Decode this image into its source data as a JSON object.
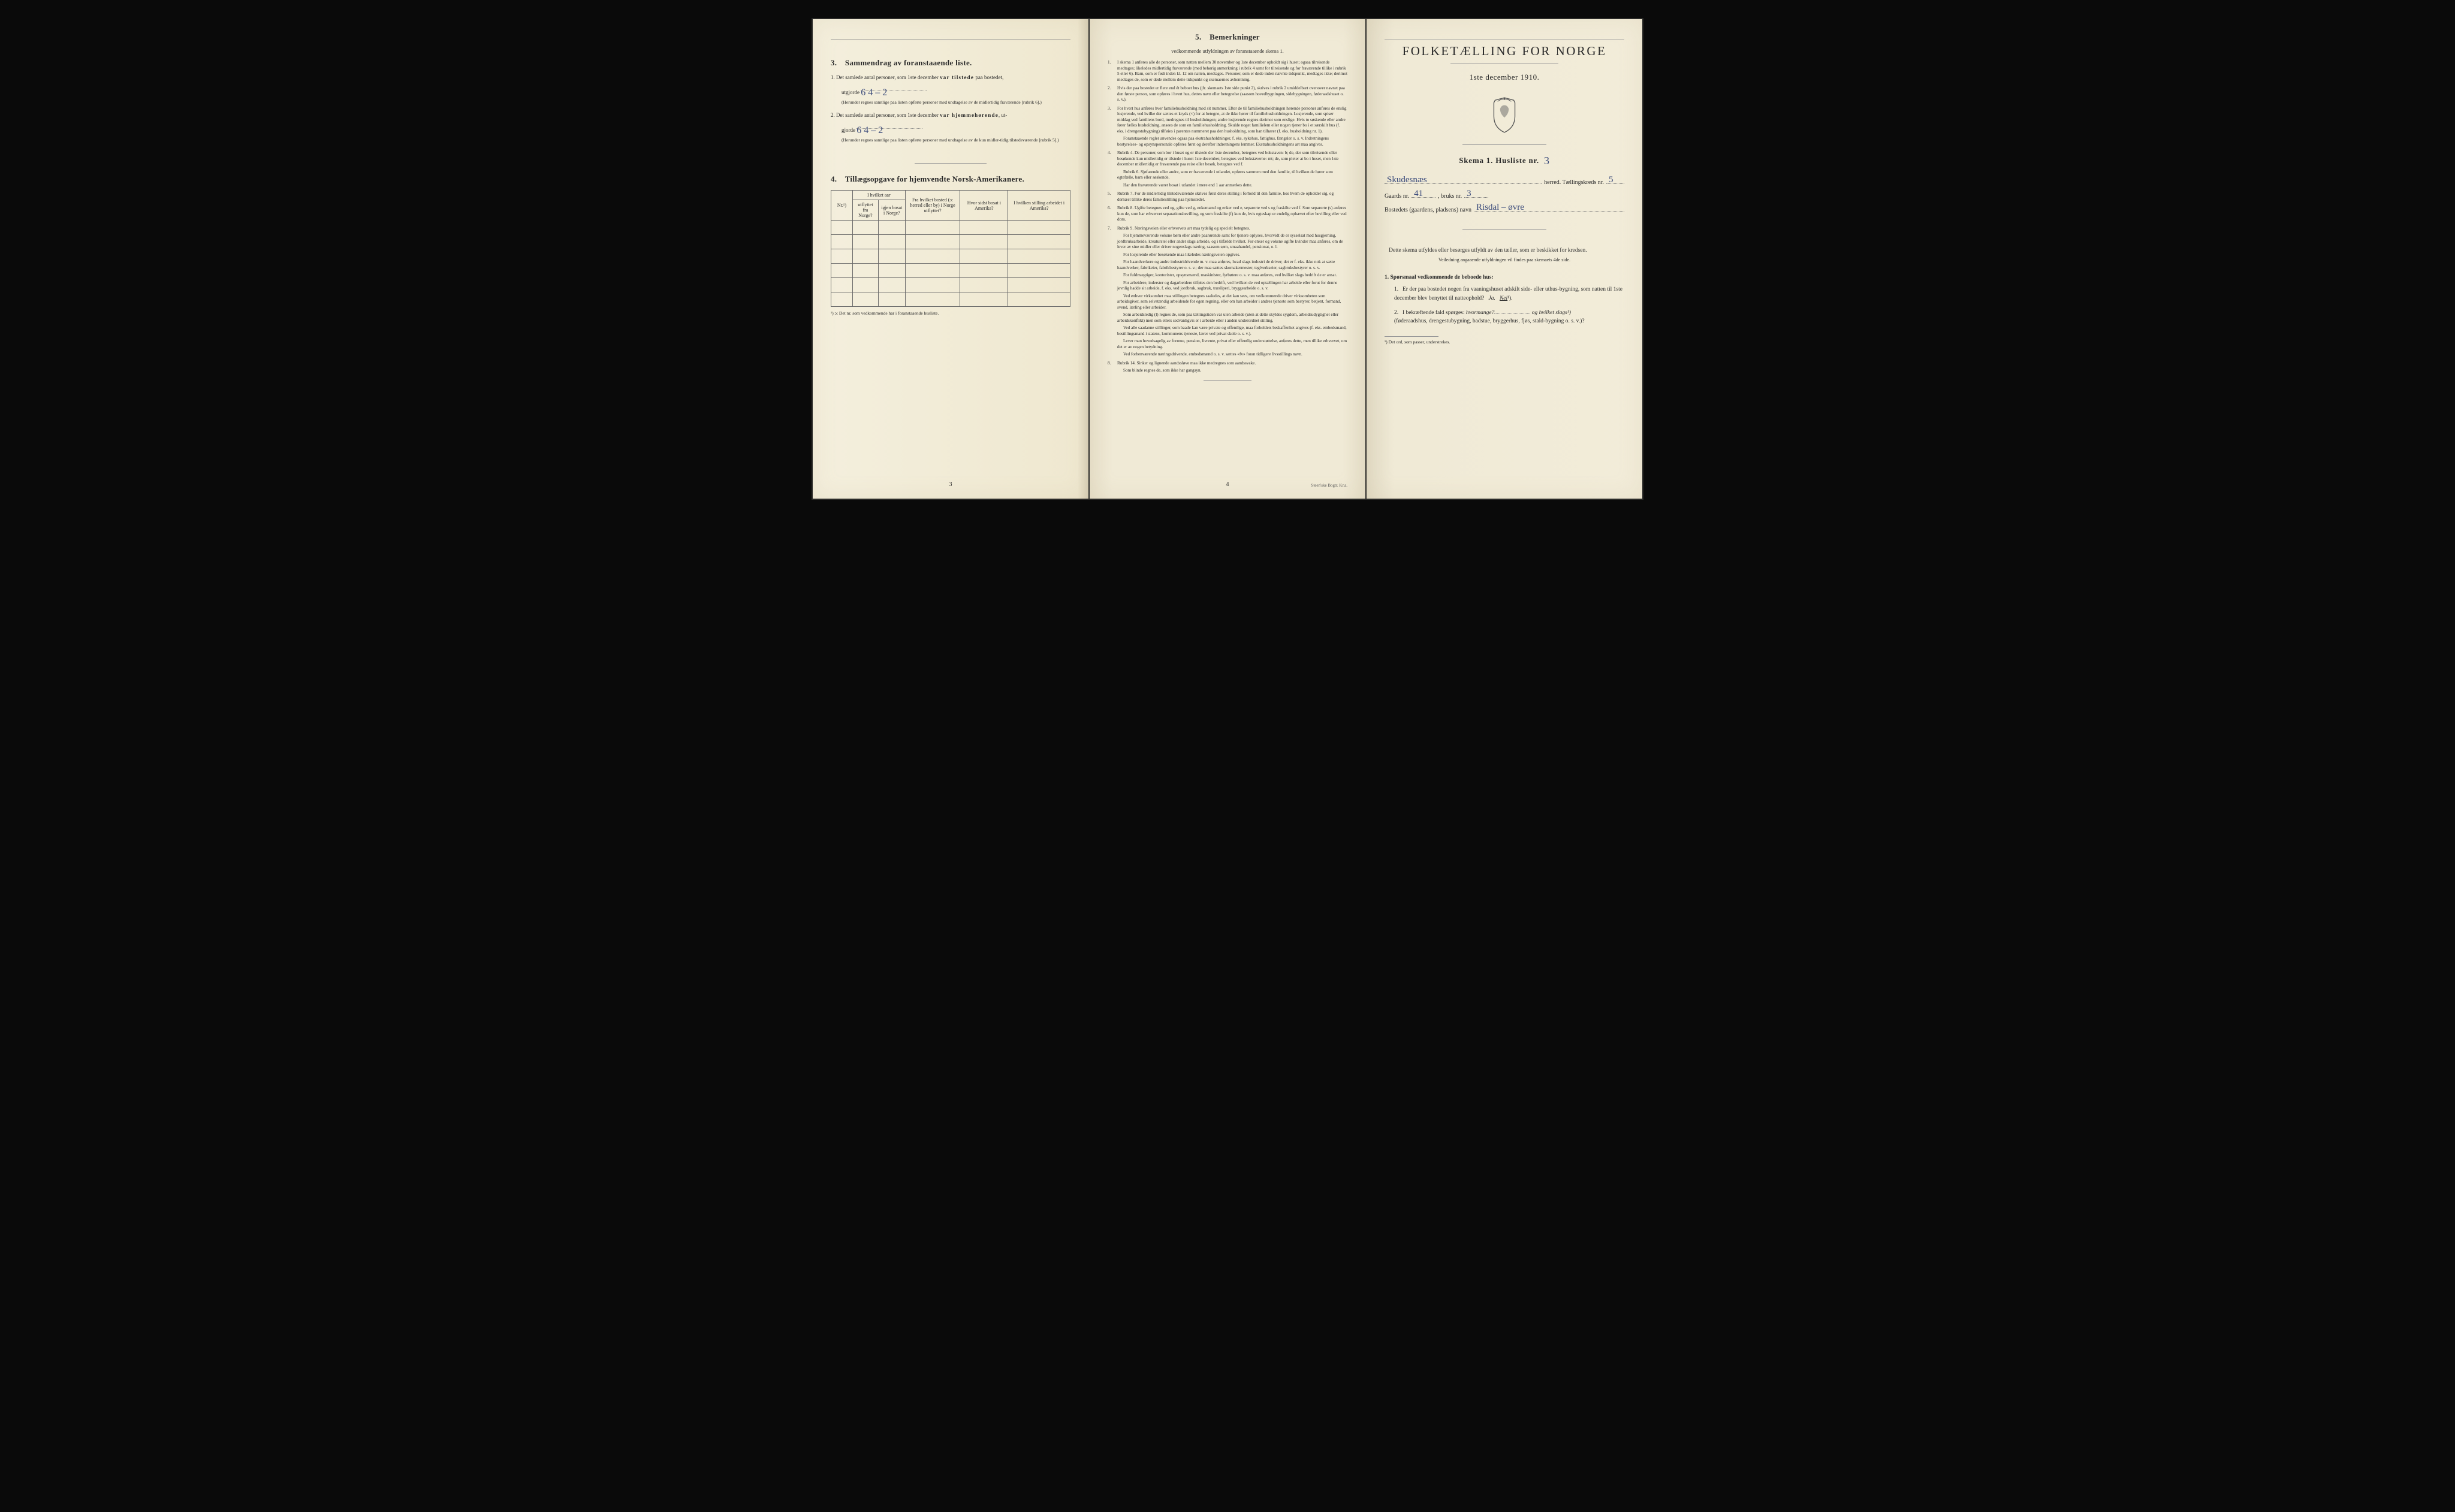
{
  "colors": {
    "paper": "#f2ecd9",
    "ink": "#2a2a2a",
    "handwriting": "#3a4a7a",
    "border": "#6a6a6a",
    "background": "#0a0a0a"
  },
  "typography": {
    "body_pt": 9,
    "fine_pt": 7.2,
    "heading_pt": 13,
    "cover_title_pt": 21
  },
  "leftPage": {
    "section3": {
      "num": "3.",
      "title": "Sammendrag av foranstaaende liste.",
      "item1_lead": "1.  Det samlede antal personer, som 1ste december",
      "item1_bold": "var tilstede",
      "item1_tail": "paa bostedet,",
      "item1_line2a": "utgjorde",
      "item1_value": "6   4 – 2",
      "item1_note": "(Herunder regnes samtlige paa listen opførte personer med undtagelse av de midlertidig fraværende [rubrik 6].)",
      "item2_lead": "2.  Det samlede antal personer, som 1ste december",
      "item2_bold": "var hjemmehørende",
      "item2_tail": ", ut-",
      "item2_line2a": "gjorde",
      "item2_value": "6   4 – 2",
      "item2_note": "(Herunder regnes samtlige paa listen opførte personer med undtagelse av de kun midler-tidig tilstedeværende [rubrik 5].)"
    },
    "section4": {
      "num": "4.",
      "title": "Tillægsopgave for hjemvendte Norsk-Amerikanere.",
      "table": {
        "col_nr_label": "Nr.¹)",
        "group1_header": "I hvilket aar",
        "col_utflyttet": "utflyttet fra Norge?",
        "col_igjen": "igjen bosat i Norge?",
        "col_fra_bosted": "Fra hvilket bosted (ɔ: herred eller by) i Norge utflyttet?",
        "col_hvor_sidst": "Hvor sidst bosat i Amerika?",
        "col_stilling": "I hvilken stilling arbeidet i Amerika?",
        "blank_rows": 6
      },
      "footnote": "¹) ɔ: Det nr. som vedkommende har i foranstaaende husliste."
    },
    "page_number": "3"
  },
  "middlePage": {
    "num": "5.",
    "title": "Bemerkninger",
    "subtitle": "vedkommende utfyldningen av foranstaaende skema 1.",
    "remarks": [
      "I skema 1 anføres alle de personer, som natten mellem 30 november og 1ste december opholdt sig i huset; ogsaa tilreisende medtages; likeledes midlertidig fraværende (med behørig anmerkning i rubrik 4 samt for tilreisende og for fraværende tillike i rubrik 5 eller 6). Barn, som er født inden kl. 12 om natten, medtages. Personer, som er døde inden nævnte tidspunkt, medtages ikke; derimot medtages de, som er døde mellem dette tidspunkt og skemaernes avhentning.",
      "Hvis der paa bostedet er flere end ét beboet hus (jfr. skemaets 1ste side punkt 2), skrives i rubrik 2 umiddelbart ovenover navnet paa den første person, som opføres i hvert hus, dettes navn eller betegnelse (saasom hovedbygningen, sidebygningen, føderaadshuset o. s. v.).",
      "For hvert hus anføres hver familiehusholdning med sit nummer. Efter de til familiehusholdningen hørende personer anføres de enslig losjerende, ved hvilke der sættes et kryds (×) for at betegne, at de ikke hører til familiehusholdningen. Losjerende, som spiser middag ved familiens bord, medregnes til husholdningen; andre losjerende regnes derimot som enslige. Hvis to søskende eller andre fører fælles husholdning, ansees de som en familiehusholdning. Skulde noget familielem eller nogen tjener bo i et særskilt hus (f. eks. i drengestubygning) tilføies i parentes nummeret paa den husholdning, som han tilhører (f. eks. husholdning nr. 1).|Foranstaaende regler anvendes ogsaa paa ekstrahusholdninger, f. eks. sykehus, fattighus, fængsler o. s. v. Indretningens bestyrelses- og opsynspersonale opføres først og derefter indretningens lemmer. Ekstrahusholdningens art maa angives.",
      "Rubrik 4. De personer, som bor i huset og er tilstede der 1ste december, betegnes ved bokstaven: b; de, der som tilreisende eller besøkende kun midlertidig er tilstede i huset 1ste december, betegnes ved bokstaverne: mt; de, som pleier at bo i huset, men 1ste december midlertidig er fraværende paa reise eller besøk, betegnes ved f.|Rubrik 6. Sjøfarende eller andre, som er fraværende i utlandet, opføres sammen med den familie, til hvilken de hører som egtefælle, barn eller søskende.|Har den fraværende været bosat i utlandet i mere end 1 aar anmerkes dette.",
      "Rubrik 7. For de midlertidig tilstedeværende skrives først deres stilling i forhold til den familie, hos hvem de opholder sig, og dernæst tillike deres familiestilling paa hjemstedet.",
      "Rubrik 8. Ugifte betegnes ved ug, gifte ved g, enkemænd og enker ved e, separerte ved s og fraskilte ved f. Som separerte (s) anføres kun de, som har erhvervet separationsbevilling, og som fraskilte (f) kun de, hvis egteskap er endelig ophævet efter bevilling eller ved dom.",
      "Rubrik 9. Næringsveien eller erhvervets art maa tydelig og specielt betegnes.|For hjemmeværende voksne børn eller andre paarørende samt for tjenere oplyses, hvorvidt de er sysselsat med husgjerning, jordbruksarbeide, kreaturstel eller andet slags arbeide, og i tilfælde hvilket. For enker og voksne ugifte kvinder maa anføres, om de lever av sine midler eller driver nogenslags næring, saasom søm, smaahandel, pensionat, o. l.|For losjerende eller besøkende maa likeledes næringsveien opgives.|For haandverkere og andre industridrivende m. v. maa anføres, hvad slags industri de driver; det er f. eks. ikke nok at sætte haandverker, fabrikeier, fabrikbestyrer o. s. v.; der maa sættes skomakermester, teglverkseier, sagbruksbestyrer o. s. v.|For fuldmægtiger, kontorister, opsynsmænd, maskinister, fyrbøtere o. s. v. maa anføres, ved hvilket slags bedrift de er ansat.|For arbeidere, inderster og dagarbeidere tilføies den bedrift, ved hvilken de ved optællingen har arbeide eller forut for denne jevnlig hadde sit arbeide, f. eks. ved jordbruk, sagbruk, træsliperi, bryggearbeide o. s. v.|Ved enhver virksomhet maa stillingen betegnes saaledes, at det kan sees, om vedkommende driver virksomheten som arbeidsgiver, som selvstændig arbeidende for egen regning, eller om han arbeider i andres tjeneste som bestyrer, betjent, formand, svend, lærling eller arbeider.|Som arbeidsledig (l) regnes de, som paa tællingstiden var uten arbeide (uten at dette skyldes sygdom, arbeidsudygtighet eller arbeidskonflikt) men som ellers sedvanligvis er i arbeide eller i anden underordnet stilling.|Ved alle saadanne stillinger, som baade kan være private og offentlige, maa forholdets beskaffenhet angives (f. eks. embedsmand, bestillingsmand i statens, kommunens tjeneste, lærer ved privat skole o. s. v.).|Lever man hovedsagelig av formue, pension, livrente, privat eller offentlig understøttelse, anføres dette, men tillike erhvervet, om det er av nogen betydning.|Ved forhenværende næringsdrivende, embedsmænd o. s. v. sættes «fv» foran tidligere livsstillings navn.",
      "Rubrik 14. Sinker og lignende aandssløve maa ikke medregnes som aandssvake.|Som blinde regnes de, som ikke har gangsyn."
    ],
    "page_number": "4",
    "imprint": "Steen'ske Bogtr.  Kr.a."
  },
  "rightPage": {
    "title": "FOLKETÆLLING FOR NORGE",
    "date": "1ste december 1910.",
    "skema_label": "Skema 1.   Husliste nr.",
    "husliste_nr": "3",
    "line_herred_label": "herred.  Tællingskreds nr.",
    "herred_value": "Skudesnæs",
    "kreds_value": "5",
    "gaards_label": "Gaards nr.",
    "gaards_value": "41",
    "bruks_label": ", bruks nr.",
    "bruks_value": "3",
    "bosted_label": "Bostedets (gaardens, pladsens) navn",
    "bosted_value": "Risdal – øvre",
    "note_main": "Dette skema utfyldes eller besørges utfyldt av den tæller, som er beskikket for kredsen.",
    "note_sub": "Veiledning angaaende utfyldningen vil findes paa skemaets 4de side.",
    "questions": {
      "head_num": "1.",
      "head_text": "Spørsmaal vedkommende de beboede hus:",
      "q1": "Er der paa bostedet nogen fra vaaningshuset adskilt side- eller uthus-bygning, som natten til 1ste december blev benyttet til natteophold?",
      "q1_ja": "Ja.",
      "q1_nei": "Nei",
      "q1_sup": "¹).",
      "q2_a": "I bekræftende fald spørges:",
      "q2_b": "hvormange?",
      "q2_c": "og hvilket slags¹)",
      "q2_d": "(føderaadshus, drengestubygning, badstue, bryggerhus, fjøs, stald-bygning o. s. v.)?"
    },
    "footnote": "¹) Det ord, som passer, understrekes."
  }
}
